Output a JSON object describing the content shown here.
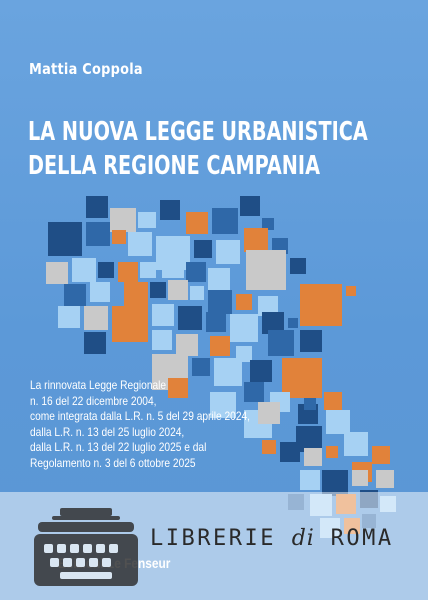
{
  "author": "Mattia Coppola",
  "title_lines": [
    "LA NUOVA LEGGE URBANISTICA",
    "DELLA REGIONE CAMPANIA"
  ],
  "blurb_lines": [
    "La rinnovata Legge Regionale",
    "n. 16 del 22 dicembre 2004,",
    "come integrata dalla L.R. n. 5 del 29 aprile 2024,",
    "dalla L.R. n. 13 del 25 luglio 2024,",
    "dalla L.R. n. 13 del 22 luglio 2025 e dal",
    "Regolamento n. 3 del 6 ottobre 2025"
  ],
  "publisher": "Edizioni Le Fenseur",
  "watermark": {
    "librerie": "LIBRERIE",
    "di": "di",
    "roma": "ROMA"
  },
  "colors": {
    "background": "#5b9ad9",
    "navy": "#1f4e86",
    "dark_blue": "#2f68a8",
    "orange": "#e1823a",
    "light_blue": "#a6d1f3",
    "grey": "#c9c9c9",
    "watermark_band": "#ffffff"
  },
  "icons": {
    "typewriter": "typewriter-icon"
  }
}
